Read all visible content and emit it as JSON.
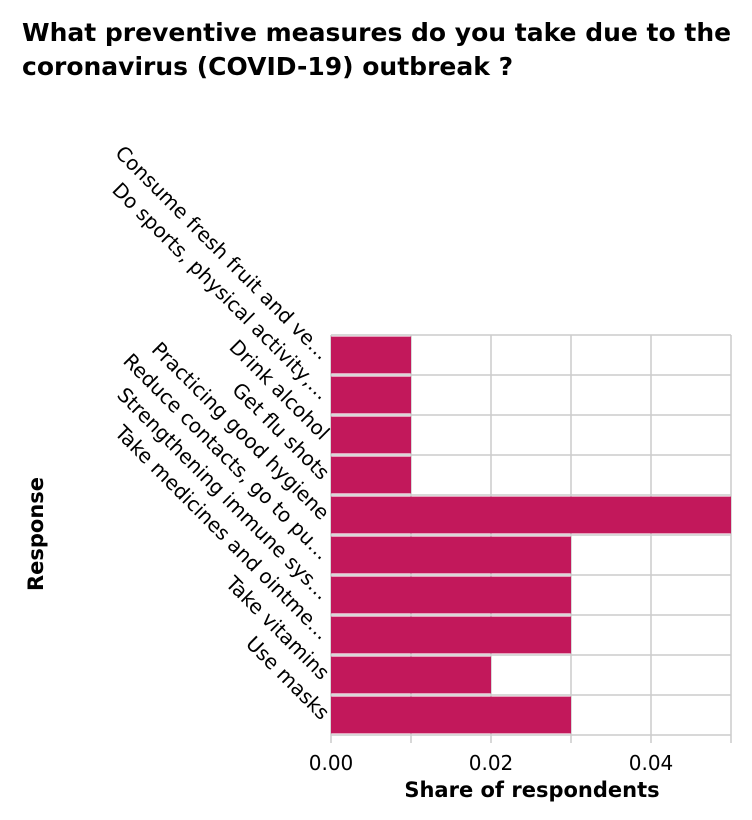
{
  "chart_data": {
    "type": "bar",
    "orientation": "horizontal",
    "title": "What preventive measures do you take due to the coronavirus (COVID-19) outbreak ?",
    "xlabel": "Share of respondents",
    "ylabel": "Response",
    "categories": [
      "Consume fresh fruit and ve…",
      "Do sports, physical activity,…",
      "Drink alcohol",
      "Get flu shots",
      "Practicing good hygiene",
      "Reduce contacts, go to pu…",
      "Strengthening immune sys…",
      "Take medicines and ointme…",
      "Take vitamins",
      "Use masks"
    ],
    "values": [
      0.01,
      0.01,
      0.01,
      0.01,
      0.05,
      0.03,
      0.03,
      0.03,
      0.02,
      0.03
    ],
    "xlim": [
      0,
      0.05
    ],
    "xticks": [
      0,
      0.02,
      0.04
    ],
    "xtick_labels": [
      "0.00",
      "0.02",
      "0.04"
    ],
    "grid": true,
    "legend": "none",
    "bar_color": "#c2185b"
  }
}
